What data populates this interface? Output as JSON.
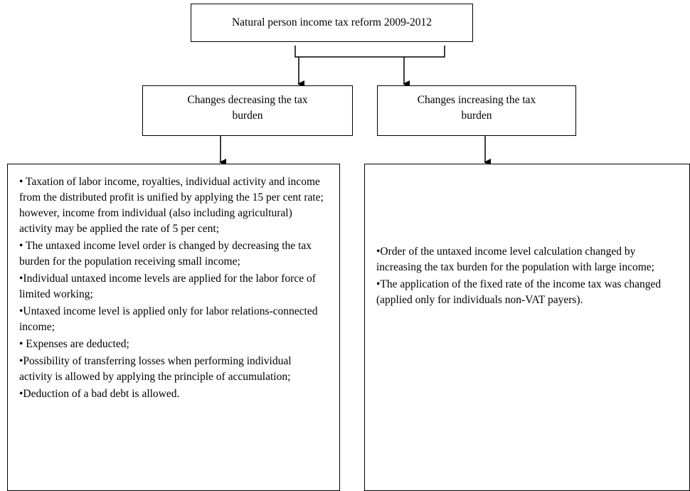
{
  "title": "Natural person income tax reform 2009-2012",
  "branches": [
    {
      "label": "Changes decreasing the tax burden",
      "items": [
        "• Taxation of labor income, royalties, individual activity and income from the distributed profit is unified by applying the 15 per cent rate; however, income from individual (also including agricultural) activity may be applied the rate of 5 per cent;",
        "• The untaxed income level order is changed by decreasing the tax burden for the population receiving small income;",
        "•Individual untaxed income levels are applied for the labor force of limited working;",
        "•Untaxed income level is applied only for labor relations-connected income;",
        "• Expenses are deducted;",
        "•Possibility of transferring losses when performing individual activity is allowed by applying the principle of accumulation;",
        "•Deduction of a bad debt is allowed."
      ]
    },
    {
      "label": "Changes increasing the tax burden",
      "items": [
        "•Order of the untaxed income level calculation changed by increasing the tax burden for the population with large income;",
        "•The application of the fixed rate of the income tax was changed (applied only for individuals non-VAT payers)."
      ]
    }
  ]
}
